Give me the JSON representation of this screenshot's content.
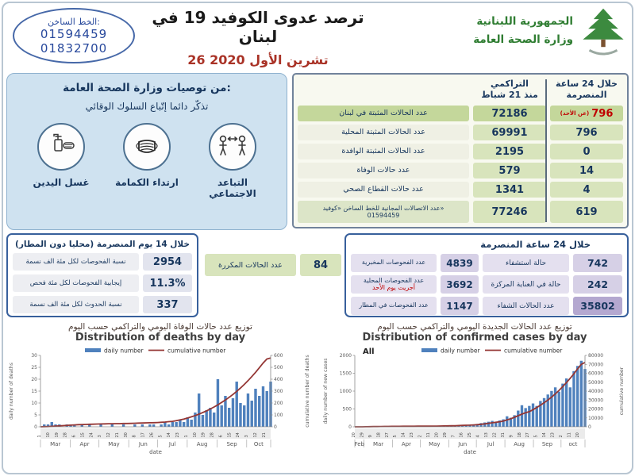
{
  "header": {
    "hotline": {
      "label": "الخط الساخن:",
      "numbers": [
        "01594459",
        "01832700"
      ]
    },
    "title": "ترصد عدوى الكوفيد 19 في لبنان",
    "date": "26 تشرين الأول 2020",
    "ministry": {
      "line1": "الجمهورية اللبنانية",
      "line2": "وزارة الصحة العامة"
    }
  },
  "recommendations": {
    "title": "من توصيات وزارة الصحة العامة:",
    "subtitle": "تذكّر دائما إتّباع السلوك الوقائي",
    "items": [
      {
        "label": "التباعد الاجتماعي",
        "icon": "social-distancing-icon"
      },
      {
        "label": "ارتداء الكمامة",
        "icon": "mask-icon"
      },
      {
        "label": "غسل اليدين",
        "icon": "hand-washing-icon"
      }
    ]
  },
  "main_table": {
    "col_cum_l1": "التراكمي",
    "col_cum_l2": "منذ 21 شباط",
    "col_24h_l1": "خلال 24 ساعة",
    "col_24h_l2": "المنصرمة",
    "rows": [
      {
        "label": "عدد الحالات المثبتة في لبنان",
        "cumulative": "72186",
        "last24": "796",
        "last24_note": "(عن الأحد)"
      },
      {
        "label": "عدد الحالات المثبتة المحلية",
        "cumulative": "69991",
        "last24": "796"
      },
      {
        "label": "عدد الحالات المثبتة الوافدة",
        "cumulative": "2195",
        "last24": "0"
      },
      {
        "label": "عدد حالات الوفاة",
        "cumulative": "579",
        "last24": "14"
      },
      {
        "label": "عدد حالات القطاع الصحي",
        "cumulative": "1341",
        "last24": "4"
      },
      {
        "label": "عدد الاتصالات المجانية للخط الساخن «كوفيد»",
        "label_line2": "01594459",
        "cumulative": "77246",
        "last24": "619"
      }
    ]
  },
  "fortnight_panel": {
    "title": "خلال 14 يوم المنصرمة (محليا دون المطار)",
    "rows": [
      {
        "label": "نسبة الفحوصات لكل مئة الف نسمة",
        "value": "2954"
      },
      {
        "label": "إيجابية الفحوصات لكل مئة فحص",
        "value": "11.3%"
      },
      {
        "label": "نسبة الحدوث لكل مئة الف نسمة",
        "value": "337"
      }
    ]
  },
  "repeated_cases": {
    "label": "عدد الحالات المكررة",
    "value": "84"
  },
  "day_panel": {
    "title": "خلال 24 ساعة المنصرمة",
    "rows": [
      {
        "test_label": "عدد الفحوصات المخبرية",
        "test_value": "4839",
        "case_label": "حالة استشفاء",
        "case_value": "742"
      },
      {
        "test_label": "عدد الفحوصات المحلية",
        "test_note": "أجريت يوم الأحد",
        "test_value": "3692",
        "case_label": "حالة في العناية المركزة",
        "case_value": "242"
      },
      {
        "test_label": "عدد الفحوصات في المطار",
        "test_value": "1147",
        "case_label": "عدد الحالات الشفاء",
        "case_value": "35802"
      }
    ]
  },
  "chart_data": [
    {
      "type": "bar+line",
      "title_ar": "توزيع عدد حالات الوفاة اليومي والتراكمي حسب اليوم",
      "title_en": "Distribution of deaths by day",
      "legend": [
        "daily number",
        "cumulative number"
      ],
      "xlabel": "date",
      "ylabel_left": "daily number of deaths",
      "ylabel_right": "cumulative number of deaths",
      "ylim_left": [
        0,
        30
      ],
      "ylim_right": [
        0,
        600
      ],
      "yticks_left": [
        0,
        5,
        10,
        15,
        20,
        25,
        30
      ],
      "yticks_right": [
        0,
        100,
        200,
        300,
        400,
        500,
        600
      ],
      "months": [
        "Mar",
        "Apr",
        "May",
        "Jun",
        "Jul",
        "Aug",
        "Sep",
        "Oct"
      ],
      "month_bounds_days": [
        0,
        31,
        61,
        92,
        122,
        153,
        184,
        215,
        240
      ],
      "day_tick_step_days": 9,
      "day_ticks": [
        "1",
        "10",
        "19",
        "28",
        "6",
        "15",
        "24",
        "3",
        "12",
        "21",
        "30",
        "8",
        "17",
        "26",
        "5",
        "14",
        "23",
        "1",
        "10",
        "19",
        "28",
        "6",
        "15",
        "24",
        "3",
        "12",
        "21"
      ],
      "daily": [
        0,
        1,
        1,
        2,
        1,
        1,
        0,
        1,
        1,
        1,
        0,
        1,
        0,
        1,
        0,
        0,
        1,
        0,
        0,
        1,
        0,
        0,
        1,
        0,
        0,
        1,
        0,
        1,
        0,
        1,
        1,
        0,
        1,
        2,
        1,
        2,
        2,
        3,
        2,
        4,
        3,
        6,
        14,
        5,
        7,
        8,
        6,
        20,
        9,
        13,
        8,
        12,
        19,
        10,
        9,
        14,
        11,
        16,
        13,
        17,
        15,
        19
      ],
      "cumulative": [
        0,
        1,
        2,
        4,
        6,
        8,
        10,
        12,
        14,
        16,
        18,
        19,
        20,
        21,
        22,
        23,
        24,
        25,
        26,
        26,
        27,
        27,
        28,
        28,
        29,
        30,
        31,
        32,
        33,
        34,
        35,
        36,
        38,
        40,
        43,
        46,
        51,
        58,
        65,
        74,
        84,
        95,
        107,
        120,
        134,
        150,
        167,
        185,
        205,
        226,
        248,
        272,
        298,
        326,
        356,
        388,
        422,
        458,
        496,
        536,
        570,
        579
      ],
      "grid": false,
      "legend_position": "top",
      "bar_color": "#4f81bd",
      "line_color": "#943634"
    },
    {
      "type": "bar+line",
      "title_ar": "توزيع عدد الحالات الجديدة اليومي والتراكمي حسب اليوم",
      "title_en": "Distribution of confirmed cases by day",
      "corner_label": "All",
      "legend": [
        "daily number",
        "cumulative number"
      ],
      "xlabel": "date",
      "ylabel_left": "daily number of new cases",
      "ylabel_right": "cumulative number",
      "ylim_left": [
        0,
        2000
      ],
      "ylim_right": [
        0,
        80000
      ],
      "yticks_left": [
        0,
        500,
        1000,
        1500,
        2000
      ],
      "yticks_right": [
        0,
        10000,
        20000,
        30000,
        40000,
        50000,
        60000,
        70000,
        80000
      ],
      "months": [
        "Feb",
        "Mar",
        "Apr",
        "May",
        "Jun",
        "Jul",
        "Aug",
        "Sep",
        "oct"
      ],
      "month_bounds_days": [
        0,
        10,
        41,
        71,
        102,
        132,
        163,
        194,
        224,
        250
      ],
      "day_tick_step_days": 9,
      "day_ticks": [
        "20",
        "29",
        "9",
        "18",
        "27",
        "5",
        "14",
        "23",
        "2",
        "11",
        "20",
        "29",
        "7",
        "16",
        "25",
        "4",
        "13",
        "22",
        "31",
        "9",
        "18",
        "27",
        "5",
        "14",
        "23",
        "2",
        "11",
        "20"
      ],
      "daily": [
        1,
        2,
        4,
        6,
        9,
        7,
        11,
        13,
        10,
        12,
        9,
        7,
        11,
        8,
        6,
        10,
        13,
        7,
        5,
        9,
        26,
        16,
        11,
        32,
        19,
        12,
        16,
        22,
        27,
        36,
        48,
        62,
        66,
        82,
        104,
        122,
        142,
        166,
        132,
        178,
        210,
        295,
        255,
        325,
        455,
        605,
        525,
        585,
        655,
        585,
        725,
        805,
        905,
        1005,
        1105,
        985,
        1210,
        1355,
        1105,
        1560,
        1705,
        1850,
        1620
      ],
      "cumulative": [
        1,
        4,
        30,
        80,
        150,
        230,
        310,
        380,
        440,
        480,
        510,
        540,
        565,
        590,
        610,
        630,
        650,
        670,
        690,
        710,
        740,
        780,
        830,
        890,
        960,
        1040,
        1140,
        1260,
        1400,
        1560,
        1740,
        1900,
        2100,
        2400,
        2800,
        3300,
        3900,
        4500,
        5100,
        5700,
        6500,
        7700,
        9100,
        10700,
        12400,
        14200,
        15800,
        17000,
        19200,
        21600,
        24200,
        27000,
        30000,
        33300,
        36900,
        40800,
        45000,
        49500,
        54300,
        59400,
        64800,
        70000,
        72186
      ],
      "grid": false,
      "legend_position": "top",
      "bar_color": "#4f81bd",
      "line_color": "#943634"
    }
  ]
}
